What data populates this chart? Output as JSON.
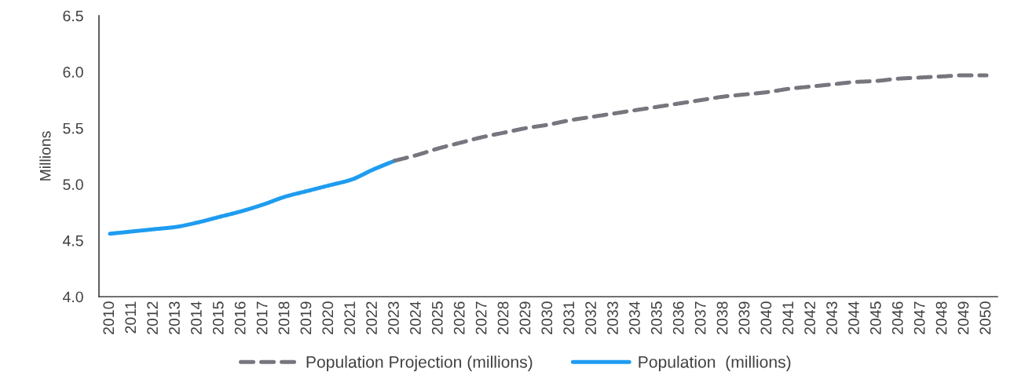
{
  "chart_data": {
    "type": "line",
    "ylabel": "Millions",
    "categories": [
      "2010",
      "2011",
      "2012",
      "2013",
      "2014",
      "2015",
      "2016",
      "2017",
      "2018",
      "2019",
      "2020",
      "2021",
      "2022",
      "2023",
      "2024",
      "2025",
      "2026",
      "2027",
      "2028",
      "2029",
      "2030",
      "2031",
      "2032",
      "2033",
      "2034",
      "2035",
      "2036",
      "2037",
      "2038",
      "2039",
      "2040",
      "2041",
      "2042",
      "2043",
      "2044",
      "2045",
      "2046",
      "2047",
      "2048",
      "2049",
      "2050"
    ],
    "series": [
      {
        "name": "Population Projection (millions)",
        "color": "#77767f",
        "line_style": "dashed",
        "values": [
          null,
          null,
          null,
          null,
          null,
          null,
          null,
          null,
          null,
          null,
          null,
          null,
          null,
          5.21,
          5.26,
          5.32,
          5.37,
          5.42,
          5.46,
          5.5,
          5.53,
          5.57,
          5.6,
          5.63,
          5.66,
          5.69,
          5.72,
          5.75,
          5.78,
          5.8,
          5.82,
          5.85,
          5.87,
          5.89,
          5.91,
          5.92,
          5.94,
          5.95,
          5.96,
          5.97,
          5.97
        ]
      },
      {
        "name": "Population  (millions)",
        "color": "#1e9cf0",
        "line_style": "solid",
        "values": [
          4.56,
          4.58,
          4.6,
          4.62,
          4.66,
          4.71,
          4.76,
          4.82,
          4.89,
          4.94,
          4.99,
          5.04,
          5.13,
          5.21,
          null,
          null,
          null,
          null,
          null,
          null,
          null,
          null,
          null,
          null,
          null,
          null,
          null,
          null,
          null,
          null,
          null,
          null,
          null,
          null,
          null,
          null,
          null,
          null,
          null,
          null,
          null
        ]
      }
    ],
    "ylim": [
      4.0,
      6.5
    ],
    "yticks": [
      {
        "value": 4.0,
        "label": "4.0"
      },
      4.5,
      {
        "value": 5.0,
        "label": "5.0"
      },
      5.5,
      {
        "value": 6.0,
        "label": "6.0"
      },
      6.5
    ],
    "legend": "bottom",
    "grid": false
  }
}
